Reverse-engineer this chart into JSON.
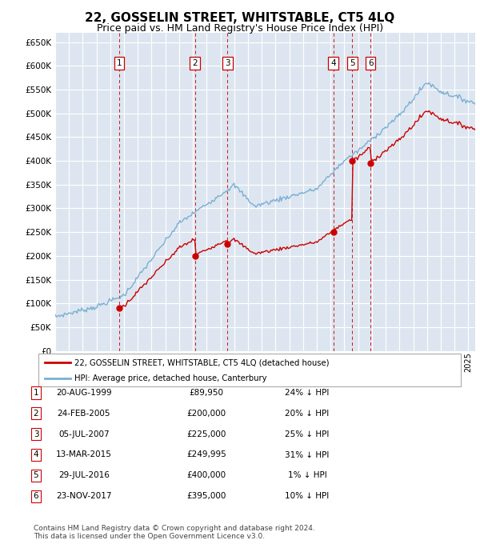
{
  "title": "22, GOSSELIN STREET, WHITSTABLE, CT5 4LQ",
  "subtitle": "Price paid vs. HM Land Registry's House Price Index (HPI)",
  "title_fontsize": 11,
  "subtitle_fontsize": 9,
  "background_color": "#ffffff",
  "plot_bg_color": "#dde6f0",
  "ylim": [
    0,
    670000
  ],
  "yticks": [
    0,
    50000,
    100000,
    150000,
    200000,
    250000,
    300000,
    350000,
    400000,
    450000,
    500000,
    550000,
    600000,
    650000
  ],
  "ytick_labels": [
    "£0",
    "£50K",
    "£100K",
    "£150K",
    "£200K",
    "£250K",
    "£300K",
    "£350K",
    "£400K",
    "£450K",
    "£500K",
    "£550K",
    "£600K",
    "£650K"
  ],
  "xlim_start": 1995.0,
  "xlim_end": 2025.5,
  "transactions": [
    {
      "num": 1,
      "date_label": "20-AUG-1999",
      "date_x": 1999.64,
      "price": 89950,
      "hpi_pct": "24% ↓ HPI"
    },
    {
      "num": 2,
      "date_label": "24-FEB-2005",
      "date_x": 2005.15,
      "price": 200000,
      "hpi_pct": "20% ↓ HPI"
    },
    {
      "num": 3,
      "date_label": "05-JUL-2007",
      "date_x": 2007.51,
      "price": 225000,
      "hpi_pct": "25% ↓ HPI"
    },
    {
      "num": 4,
      "date_label": "13-MAR-2015",
      "date_x": 2015.2,
      "price": 249995,
      "hpi_pct": "31% ↓ HPI"
    },
    {
      "num": 5,
      "date_label": "29-JUL-2016",
      "date_x": 2016.58,
      "price": 400000,
      "hpi_pct": "1% ↓ HPI"
    },
    {
      "num": 6,
      "date_label": "23-NOV-2017",
      "date_x": 2017.9,
      "price": 395000,
      "hpi_pct": "10% ↓ HPI"
    }
  ],
  "line_color_red": "#cc0000",
  "line_color_blue": "#7aafd4",
  "marker_color_red": "#cc0000",
  "vline_color": "#cc0000",
  "legend_label_red": "22, GOSSELIN STREET, WHITSTABLE, CT5 4LQ (detached house)",
  "legend_label_blue": "HPI: Average price, detached house, Canterbury",
  "footer1": "Contains HM Land Registry data © Crown copyright and database right 2024.",
  "footer2": "This data is licensed under the Open Government Licence v3.0."
}
